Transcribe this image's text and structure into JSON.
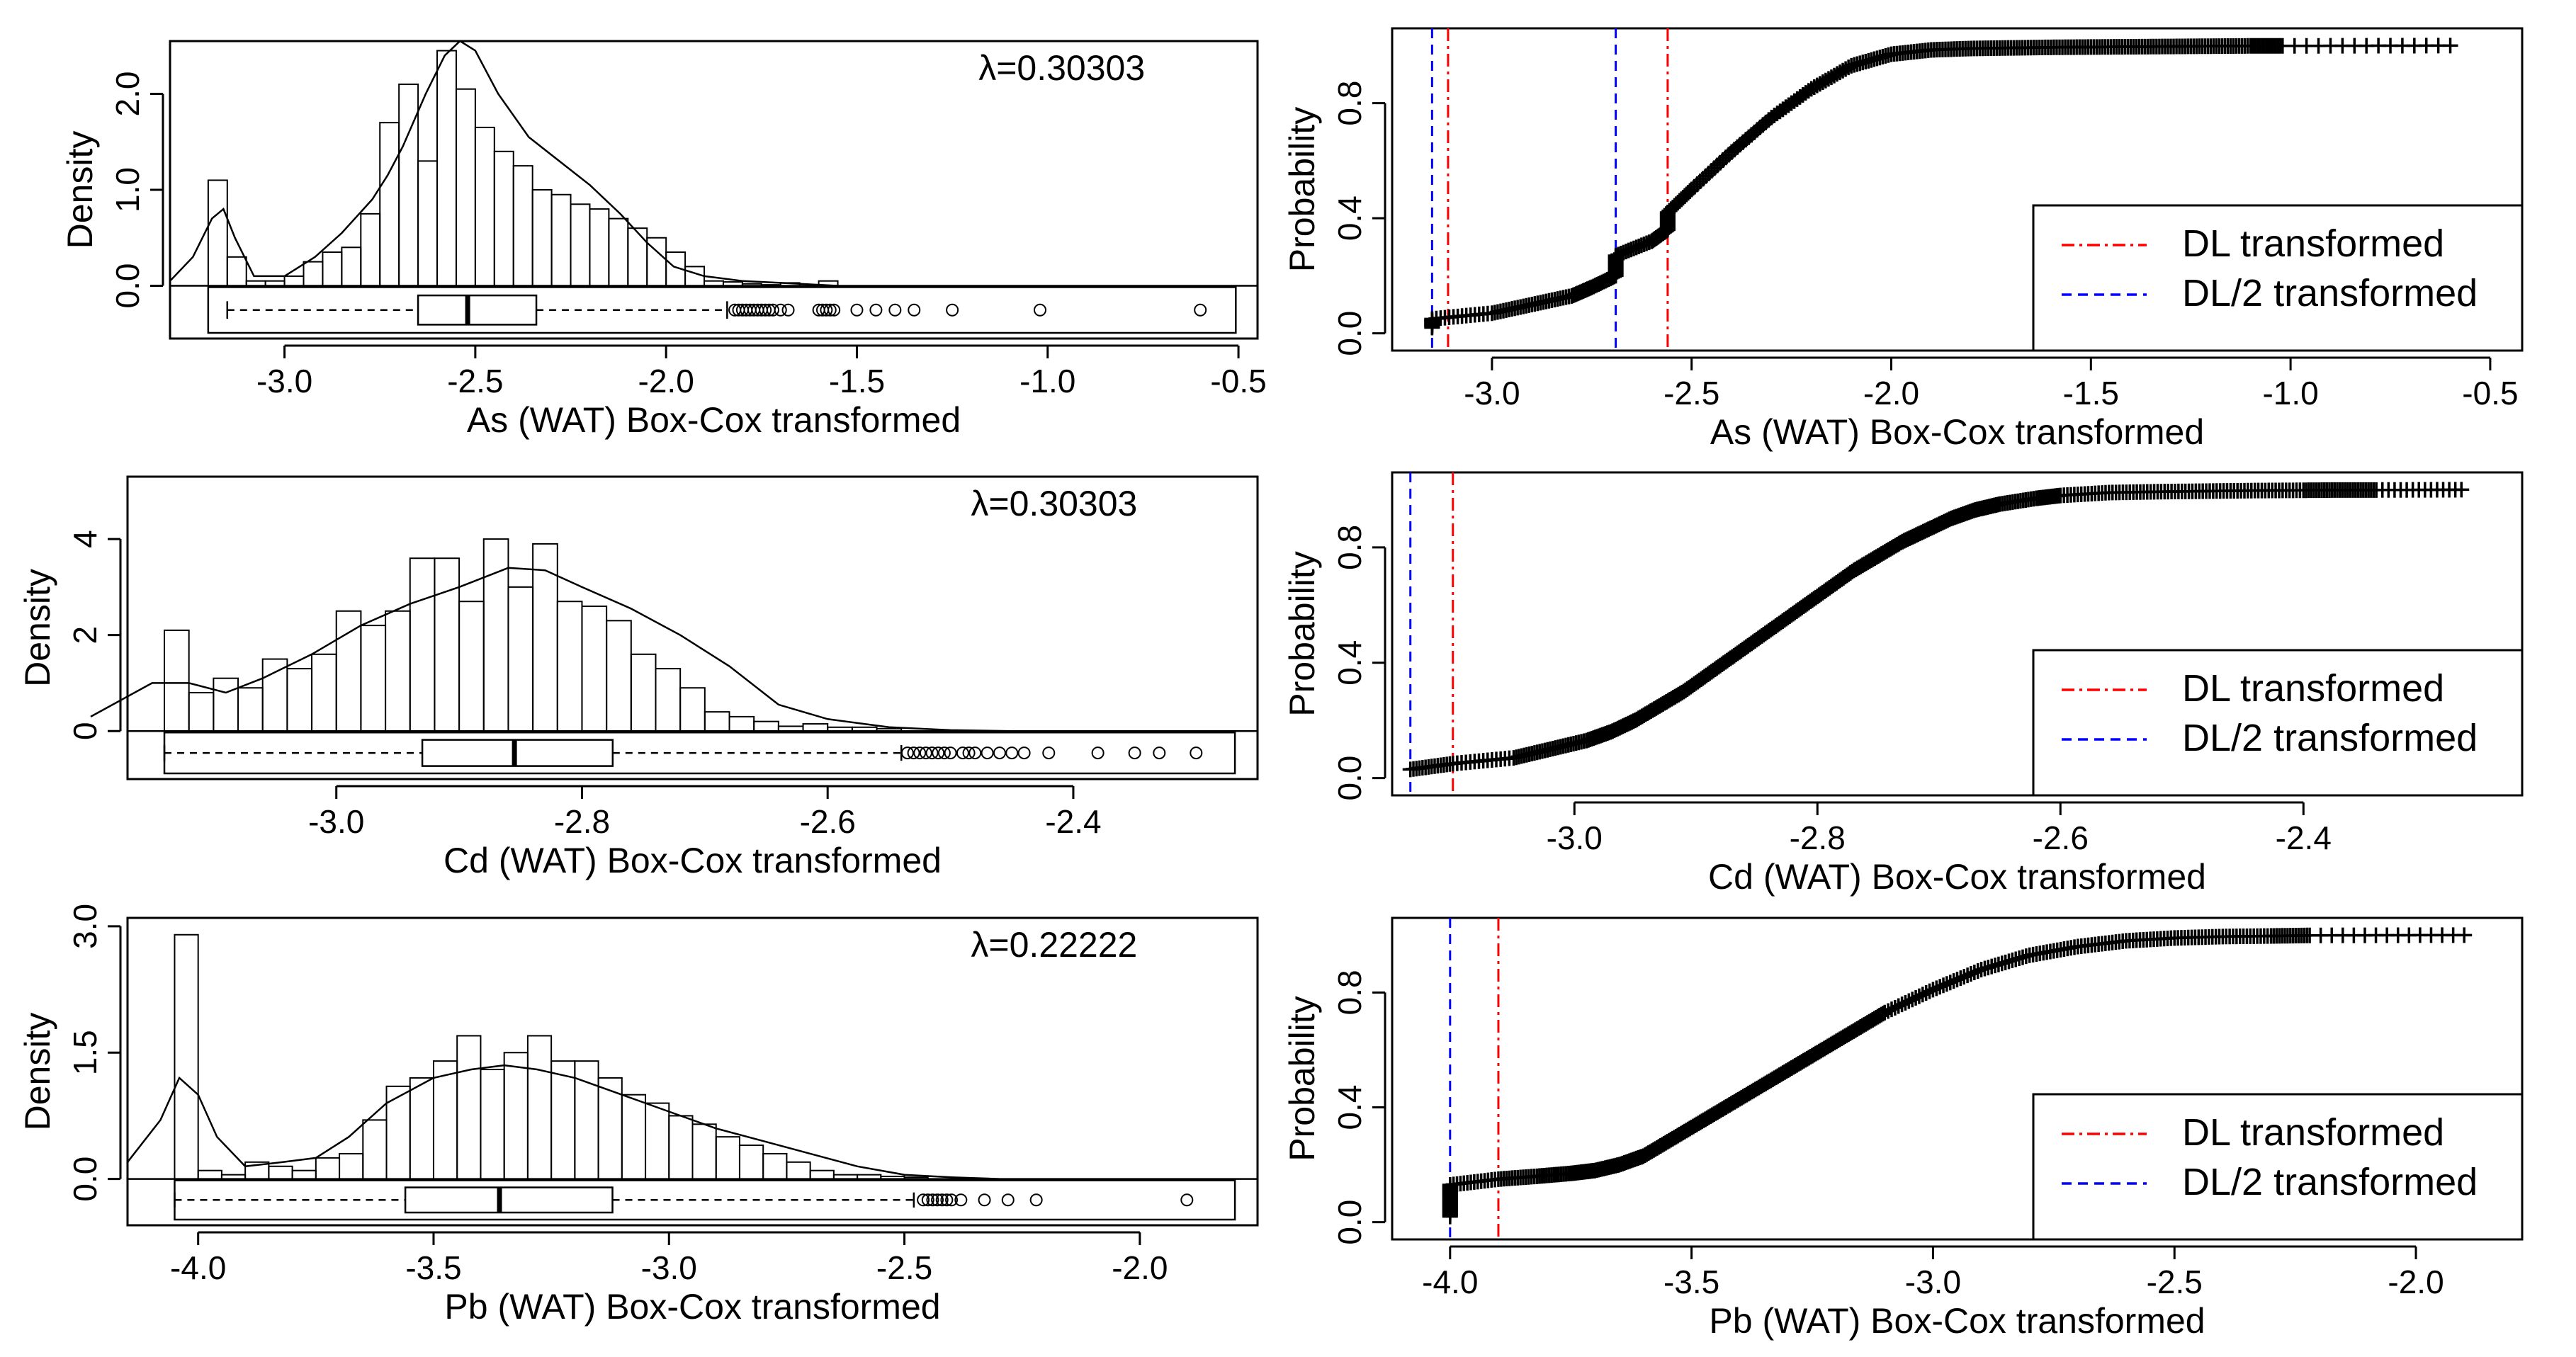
{
  "chart_data": [
    {
      "id": "as-hist",
      "type": "histogram",
      "xlabel": "As (WAT) Box-Cox transformed",
      "ylabel": "Density",
      "annotation": "λ=0.30303",
      "xlim": [
        -3.3,
        -0.45
      ],
      "ylim": [
        -0.55,
        2.55
      ],
      "xticks": [
        -3.0,
        -2.5,
        -2.0,
        -1.5,
        -1.0,
        -0.5
      ],
      "xtick_labels": [
        "-3.0",
        "-2.5",
        "-2.0",
        "-1.5",
        "-1.0",
        "-0.5"
      ],
      "yticks": [
        0.0,
        1.0,
        2.0
      ],
      "ytick_labels": [
        "0.0",
        "1.0",
        "2.0"
      ],
      "bins": {
        "start": -3.2,
        "width": 0.05,
        "heights": [
          1.1,
          0.3,
          0.05,
          0.05,
          0.1,
          0.25,
          0.35,
          0.4,
          0.75,
          1.7,
          2.1,
          1.3,
          2.45,
          2.05,
          1.65,
          1.4,
          1.25,
          1.0,
          0.95,
          0.85,
          0.8,
          0.7,
          0.6,
          0.5,
          0.35,
          0.2,
          0.05,
          0.04,
          0.02,
          0.01,
          0.03,
          0.0,
          0.05
        ]
      },
      "density_curve": {
        "x": [
          -3.3,
          -3.24,
          -3.19,
          -3.16,
          -3.13,
          -3.08,
          -3.0,
          -2.92,
          -2.85,
          -2.77,
          -2.73,
          -2.69,
          -2.63,
          -2.58,
          -2.54,
          -2.5,
          -2.44,
          -2.36,
          -2.28,
          -2.2,
          -2.12,
          -2.05,
          -1.98,
          -1.9,
          -1.8,
          -1.7,
          -1.6,
          -1.55
        ],
        "y": [
          0.05,
          0.3,
          0.7,
          0.8,
          0.5,
          0.1,
          0.1,
          0.3,
          0.55,
          0.9,
          1.15,
          1.45,
          2.0,
          2.4,
          2.55,
          2.45,
          2.0,
          1.55,
          1.3,
          1.05,
          0.75,
          0.45,
          0.2,
          0.1,
          0.05,
          0.03,
          0.01,
          0.0
        ]
      },
      "boxplot": {
        "whisker_low": -3.15,
        "q1": -2.65,
        "median": -2.52,
        "q3": -2.34,
        "whisker_high": -1.84,
        "outliers": [
          -1.82,
          -1.81,
          -1.8,
          -1.79,
          -1.78,
          -1.77,
          -1.76,
          -1.75,
          -1.74,
          -1.73,
          -1.72,
          -1.7,
          -1.68,
          -1.6,
          -1.59,
          -1.58,
          -1.57,
          -1.56,
          -1.5,
          -1.45,
          -1.4,
          -1.35,
          -1.25,
          -1.02,
          -0.6
        ]
      }
    },
    {
      "id": "as-cdf",
      "type": "scatter",
      "xlabel": "As (WAT) Box-Cox transformed",
      "ylabel": "Probability",
      "xlim": [
        -3.25,
        -0.42
      ],
      "ylim": [
        -0.06,
        1.06
      ],
      "xticks": [
        -3.0,
        -2.5,
        -2.0,
        -1.5,
        -1.0,
        -0.5
      ],
      "xtick_labels": [
        "-3.0",
        "-2.5",
        "-2.0",
        "-1.5",
        "-1.0",
        "-0.5"
      ],
      "yticks": [
        0.0,
        0.4,
        0.8
      ],
      "ytick_labels": [
        "0.0",
        "0.4",
        "0.8"
      ],
      "dl": -2.56,
      "dl_half": -2.69,
      "dl_extra": -3.11,
      "dl_half_extra": -3.15,
      "cdf_x": [
        -3.15,
        -3.15,
        -3.0,
        -2.9,
        -2.8,
        -2.75,
        -2.69,
        -2.69,
        -2.6,
        -2.56,
        -2.56,
        -2.5,
        -2.4,
        -2.3,
        -2.2,
        -2.1,
        -2.0,
        -1.9,
        -1.8,
        -1.7,
        -1.6,
        -1.5,
        -1.4,
        -1.3,
        -1.2,
        -1.1,
        -1.02,
        -0.6
      ],
      "cdf_y": [
        0.02,
        0.05,
        0.07,
        0.1,
        0.13,
        0.16,
        0.2,
        0.27,
        0.32,
        0.36,
        0.42,
        0.5,
        0.63,
        0.75,
        0.85,
        0.93,
        0.97,
        0.985,
        0.99,
        0.992,
        0.994,
        0.995,
        0.996,
        0.997,
        0.998,
        0.999,
        0.999,
        1.0
      ],
      "legend": [
        "DL transformed",
        "DL/2 transformed"
      ]
    },
    {
      "id": "cd-hist",
      "type": "histogram",
      "xlabel": "Cd (WAT) Box-Cox transformed",
      "ylabel": "Density",
      "annotation": "λ=0.30303",
      "xlim": [
        -3.17,
        -2.25
      ],
      "ylim": [
        -1.0,
        5.3
      ],
      "xticks": [
        -3.0,
        -2.8,
        -2.6,
        -2.4
      ],
      "xtick_labels": [
        "-3.0",
        "-2.8",
        "-2.6",
        "-2.4"
      ],
      "yticks": [
        0,
        2,
        4
      ],
      "ytick_labels": [
        "0",
        "2",
        "4"
      ],
      "bins": {
        "start": -3.14,
        "width": 0.02,
        "heights": [
          2.1,
          0.8,
          1.1,
          0.9,
          1.5,
          1.3,
          1.6,
          2.5,
          2.2,
          2.5,
          3.6,
          3.6,
          2.7,
          4.0,
          3.0,
          3.9,
          2.7,
          2.6,
          2.3,
          1.6,
          1.3,
          0.9,
          0.4,
          0.3,
          0.2,
          0.1,
          0.15,
          0.08,
          0.08,
          0.05
        ]
      },
      "density_curve": {
        "x": [
          -3.2,
          -3.15,
          -3.12,
          -3.09,
          -3.06,
          -3.02,
          -2.98,
          -2.94,
          -2.9,
          -2.86,
          -2.83,
          -2.8,
          -2.76,
          -2.72,
          -2.68,
          -2.64,
          -2.6,
          -2.55,
          -2.5,
          -2.45
        ],
        "y": [
          0.3,
          1.0,
          1.0,
          0.8,
          1.1,
          1.6,
          2.2,
          2.65,
          3.0,
          3.4,
          3.35,
          3.0,
          2.55,
          2.0,
          1.35,
          0.55,
          0.25,
          0.08,
          0.02,
          0.0
        ]
      },
      "boxplot": {
        "whisker_low": -3.14,
        "q1": -2.93,
        "median": -2.855,
        "q3": -2.775,
        "whisker_high": -2.54,
        "outliers": [
          -2.535,
          -2.53,
          -2.525,
          -2.52,
          -2.515,
          -2.51,
          -2.505,
          -2.5,
          -2.49,
          -2.485,
          -2.48,
          -2.47,
          -2.46,
          -2.45,
          -2.44,
          -2.42,
          -2.38,
          -2.35,
          -2.33,
          -2.3
        ]
      }
    },
    {
      "id": "cd-cdf",
      "type": "scatter",
      "xlabel": "Cd (WAT) Box-Cox transformed",
      "ylabel": "Probability",
      "xlim": [
        -3.15,
        -2.22
      ],
      "ylim": [
        -0.06,
        1.06
      ],
      "xticks": [
        -3.0,
        -2.8,
        -2.6,
        -2.4
      ],
      "xtick_labels": [
        "-3.0",
        "-2.8",
        "-2.6",
        "-2.4"
      ],
      "yticks": [
        0.0,
        0.4,
        0.8
      ],
      "ytick_labels": [
        "0.0",
        "0.4",
        "0.8"
      ],
      "dl": -3.1,
      "dl_half": -3.135,
      "cdf_x": [
        -3.135,
        -3.1,
        -3.05,
        -3.02,
        -2.99,
        -2.97,
        -2.95,
        -2.93,
        -2.91,
        -2.89,
        -2.87,
        -2.85,
        -2.83,
        -2.81,
        -2.79,
        -2.77,
        -2.75,
        -2.73,
        -2.71,
        -2.69,
        -2.67,
        -2.65,
        -2.62,
        -2.6,
        -2.56,
        -2.52,
        -2.48,
        -2.44,
        -2.4,
        -2.37,
        -2.34,
        -2.27
      ],
      "cdf_y": [
        0.03,
        0.05,
        0.07,
        0.1,
        0.13,
        0.16,
        0.2,
        0.25,
        0.3,
        0.36,
        0.42,
        0.48,
        0.54,
        0.6,
        0.66,
        0.72,
        0.77,
        0.82,
        0.86,
        0.9,
        0.93,
        0.95,
        0.97,
        0.98,
        0.99,
        0.993,
        0.995,
        0.997,
        0.998,
        0.999,
        0.999,
        1.0
      ],
      "legend": [
        "DL transformed",
        "DL/2 transformed"
      ]
    },
    {
      "id": "pb-hist",
      "type": "histogram",
      "xlabel": "Pb (WAT) Box-Cox transformed",
      "ylabel": "Density",
      "annotation": "λ=0.22222",
      "xlim": [
        -4.15,
        -1.75
      ],
      "ylim": [
        -0.55,
        3.1
      ],
      "xticks": [
        -4.0,
        -3.5,
        -3.0,
        -2.5,
        -2.0
      ],
      "xtick_labels": [
        "-4.0",
        "-3.5",
        "-3.0",
        "-2.5",
        "-2.0"
      ],
      "yticks": [
        0.0,
        1.5,
        3.0
      ],
      "ytick_labels": [
        "0.0",
        "1.5",
        "3.0"
      ],
      "bins": {
        "start": -4.05,
        "width": 0.05,
        "heights": [
          2.9,
          0.1,
          0.05,
          0.2,
          0.15,
          0.1,
          0.25,
          0.3,
          0.7,
          1.1,
          1.2,
          1.4,
          1.7,
          1.3,
          1.5,
          1.7,
          1.4,
          1.4,
          1.2,
          1.0,
          0.9,
          0.75,
          0.65,
          0.5,
          0.4,
          0.3,
          0.2,
          0.1,
          0.05,
          0.05,
          0.03,
          0.02
        ]
      },
      "density_curve": {
        "x": [
          -4.15,
          -4.08,
          -4.04,
          -4.0,
          -3.96,
          -3.9,
          -3.82,
          -3.75,
          -3.68,
          -3.6,
          -3.5,
          -3.42,
          -3.35,
          -3.28,
          -3.2,
          -3.1,
          -3.0,
          -2.9,
          -2.8,
          -2.7,
          -2.6,
          -2.5,
          -2.4,
          -2.3
        ],
        "y": [
          0.2,
          0.7,
          1.2,
          1.0,
          0.5,
          0.15,
          0.2,
          0.25,
          0.5,
          0.9,
          1.2,
          1.3,
          1.35,
          1.3,
          1.2,
          1.0,
          0.8,
          0.6,
          0.45,
          0.3,
          0.15,
          0.05,
          0.02,
          0.0
        ]
      },
      "boxplot": {
        "whisker_low": -4.05,
        "q1": -3.56,
        "median": -3.36,
        "q3": -3.12,
        "whisker_high": -2.48,
        "outliers": [
          -2.46,
          -2.45,
          -2.44,
          -2.43,
          -2.42,
          -2.41,
          -2.4,
          -2.38,
          -2.33,
          -2.28,
          -2.22,
          -1.9
        ]
      }
    },
    {
      "id": "pb-cdf",
      "type": "scatter",
      "xlabel": "Pb (WAT) Box-Cox transformed",
      "ylabel": "Probability",
      "xlim": [
        -4.12,
        -1.78
      ],
      "ylim": [
        -0.06,
        1.06
      ],
      "xticks": [
        -4.0,
        -3.5,
        -3.0,
        -2.5,
        -2.0
      ],
      "xtick_labels": [
        "-4.0",
        "-3.5",
        "-3.0",
        "-2.5",
        "-2.0"
      ],
      "yticks": [
        0.0,
        0.4,
        0.8
      ],
      "ytick_labels": [
        "0.0",
        "0.4",
        "0.8"
      ],
      "dl": -3.9,
      "dl_half": -4.0,
      "cdf_x": [
        -4.0,
        -4.0,
        -4.0,
        -3.9,
        -3.82,
        -3.75,
        -3.7,
        -3.65,
        -3.6,
        -3.55,
        -3.5,
        -3.45,
        -3.4,
        -3.35,
        -3.3,
        -3.25,
        -3.2,
        -3.15,
        -3.1,
        -3.0,
        -2.9,
        -2.8,
        -2.7,
        -2.6,
        -2.5,
        -2.4,
        -2.3,
        -2.22,
        -1.9
      ],
      "cdf_y": [
        0.02,
        0.08,
        0.13,
        0.15,
        0.16,
        0.17,
        0.18,
        0.2,
        0.23,
        0.28,
        0.33,
        0.38,
        0.43,
        0.48,
        0.53,
        0.58,
        0.63,
        0.68,
        0.73,
        0.81,
        0.88,
        0.93,
        0.96,
        0.98,
        0.99,
        0.995,
        0.997,
        0.999,
        1.0
      ],
      "legend": [
        "DL transformed",
        "DL/2 transformed"
      ]
    }
  ]
}
